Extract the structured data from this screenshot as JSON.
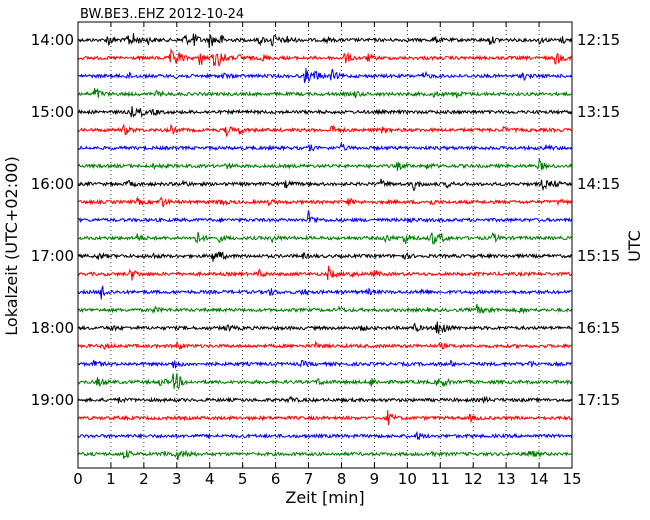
{
  "chart_data": {
    "type": "line",
    "title": "BW.BE3..EHZ 2012-10-24",
    "xlabel": "Zeit  [min]",
    "ylabel_left": "Lokalzeit (UTC+02:00)",
    "ylabel_right": "UTC",
    "xlim": [
      0,
      15
    ],
    "x_ticks": [
      "0",
      "1",
      "2",
      "3",
      "4",
      "5",
      "6",
      "7",
      "8",
      "9",
      "10",
      "11",
      "12",
      "13",
      "14",
      "15"
    ],
    "grid": "vertical dotted lines at each minute",
    "left_tick_labels": [
      "14:00",
      "15:00",
      "16:00",
      "17:00",
      "18:00",
      "19:00"
    ],
    "right_tick_labels": [
      "12:15",
      "13:15",
      "14:15",
      "15:15",
      "16:15",
      "17:15"
    ],
    "trace_count": 24,
    "trace_interval_min": 15,
    "trace_colors": [
      "#000000",
      "#ff0000",
      "#0000ff",
      "#008000"
    ],
    "events": [
      [
        [
          0.9,
          0.7
        ],
        [
          1.5,
          0.9
        ],
        [
          1.7,
          0.6
        ],
        [
          2.1,
          0.4
        ],
        [
          3.2,
          0.8
        ],
        [
          3.5,
          0.8
        ],
        [
          4.0,
          1.0
        ],
        [
          4.3,
          0.6
        ],
        [
          5.5,
          0.5
        ],
        [
          5.9,
          0.9
        ],
        [
          6.3,
          0.6
        ],
        [
          7.5,
          0.3
        ],
        [
          10.8,
          0.4
        ],
        [
          12.5,
          0.5
        ],
        [
          14.0,
          0.4
        ],
        [
          14.7,
          0.4
        ]
      ],
      [
        [
          2.8,
          0.9
        ],
        [
          3.0,
          0.8
        ],
        [
          3.7,
          1.0
        ],
        [
          4.1,
          1.2
        ],
        [
          4.3,
          0.9
        ],
        [
          4.9,
          0.4
        ],
        [
          5.6,
          0.4
        ],
        [
          8.1,
          0.7
        ],
        [
          8.8,
          0.4
        ],
        [
          14.5,
          0.9
        ]
      ],
      [
        [
          1.5,
          0.4
        ],
        [
          3.0,
          0.3
        ],
        [
          4.4,
          0.3
        ],
        [
          6.9,
          1.1
        ],
        [
          7.2,
          0.6
        ],
        [
          7.7,
          0.7
        ],
        [
          10.5,
          0.4
        ],
        [
          13.5,
          0.4
        ]
      ],
      [
        [
          0.5,
          0.9
        ],
        [
          2.4,
          0.3
        ],
        [
          8.4,
          0.4
        ],
        [
          10.8,
          0.3
        ],
        [
          11.5,
          0.3
        ]
      ],
      [
        [
          1.6,
          0.7
        ],
        [
          1.9,
          0.4
        ],
        [
          2.3,
          0.3
        ]
      ],
      [
        [
          1.4,
          0.6
        ],
        [
          2.8,
          0.5
        ],
        [
          4.5,
          0.6
        ],
        [
          4.9,
          0.4
        ],
        [
          7.7,
          0.6
        ],
        [
          9.2,
          0.3
        ],
        [
          12.9,
          0.3
        ]
      ],
      [
        [
          7.0,
          0.4
        ],
        [
          8.0,
          0.4
        ],
        [
          14.2,
          0.3
        ]
      ],
      [
        [
          2.3,
          0.3
        ],
        [
          4.5,
          0.3
        ],
        [
          9.7,
          0.4
        ],
        [
          10.6,
          0.3
        ],
        [
          14.0,
          0.7
        ]
      ],
      [
        [
          1.5,
          0.4
        ],
        [
          3.2,
          0.3
        ],
        [
          6.3,
          0.4
        ],
        [
          9.2,
          0.4
        ],
        [
          10.2,
          0.7
        ],
        [
          11.2,
          0.3
        ],
        [
          14.1,
          0.7
        ],
        [
          14.4,
          0.4
        ]
      ],
      [
        [
          1.8,
          0.3
        ],
        [
          2.5,
          0.8
        ],
        [
          4.3,
          0.4
        ],
        [
          5.8,
          0.3
        ],
        [
          8.2,
          0.4
        ],
        [
          10.7,
          0.3
        ],
        [
          14.6,
          0.3
        ]
      ],
      [
        [
          7.0,
          1.0
        ],
        [
          10.0,
          0.3
        ]
      ],
      [
        [
          1.8,
          0.5
        ],
        [
          3.6,
          0.8
        ],
        [
          4.3,
          0.4
        ],
        [
          5.9,
          0.4
        ],
        [
          9.3,
          0.6
        ],
        [
          9.9,
          0.8
        ],
        [
          10.7,
          1.2
        ],
        [
          11.0,
          0.5
        ],
        [
          12.6,
          0.5
        ]
      ],
      [
        [
          0.6,
          0.4
        ],
        [
          2.2,
          0.4
        ],
        [
          4.1,
          0.6
        ],
        [
          4.3,
          0.4
        ],
        [
          6.8,
          0.3
        ],
        [
          9.9,
          0.3
        ]
      ],
      [
        [
          1.6,
          0.8
        ],
        [
          5.5,
          0.4
        ],
        [
          7.6,
          0.8
        ],
        [
          8.2,
          0.4
        ],
        [
          9.0,
          0.3
        ]
      ],
      [
        [
          0.7,
          1.0
        ],
        [
          5.8,
          0.5
        ],
        [
          6.8,
          0.4
        ],
        [
          8.8,
          0.3
        ],
        [
          10.4,
          0.3
        ]
      ],
      [
        [
          2.3,
          0.3
        ],
        [
          7.9,
          0.3
        ],
        [
          12.1,
          0.6
        ],
        [
          12.4,
          0.4
        ],
        [
          13.4,
          0.3
        ]
      ],
      [
        [
          1.0,
          0.3
        ],
        [
          4.5,
          0.4
        ],
        [
          8.6,
          0.3
        ],
        [
          10.2,
          0.5
        ],
        [
          10.9,
          1.0
        ],
        [
          11.1,
          0.5
        ]
      ],
      [
        [
          0.8,
          0.3
        ],
        [
          3.0,
          0.5
        ],
        [
          7.2,
          0.3
        ],
        [
          11.0,
          0.3
        ]
      ],
      [
        [
          0.5,
          0.5
        ],
        [
          2.9,
          0.6
        ],
        [
          6.8,
          0.3
        ],
        [
          11.3,
          0.3
        ],
        [
          13.7,
          0.3
        ]
      ],
      [
        [
          0.6,
          0.6
        ],
        [
          2.5,
          0.5
        ],
        [
          2.9,
          0.9
        ],
        [
          3.0,
          0.6
        ],
        [
          7.3,
          0.4
        ],
        [
          8.9,
          0.5
        ],
        [
          10.9,
          0.4
        ],
        [
          11.1,
          0.4
        ]
      ],
      [
        [
          1.2,
          0.3
        ],
        [
          6.4,
          0.4
        ],
        [
          12.3,
          0.3
        ]
      ],
      [
        [
          9.4,
          0.8
        ],
        [
          11.9,
          0.3
        ]
      ],
      [
        [
          10.3,
          0.4
        ]
      ],
      [
        [
          1.4,
          0.6
        ],
        [
          2.6,
          0.5
        ],
        [
          3.0,
          0.7
        ],
        [
          3.3,
          0.4
        ],
        [
          10.7,
          0.3
        ],
        [
          13.7,
          0.6
        ]
      ]
    ]
  }
}
